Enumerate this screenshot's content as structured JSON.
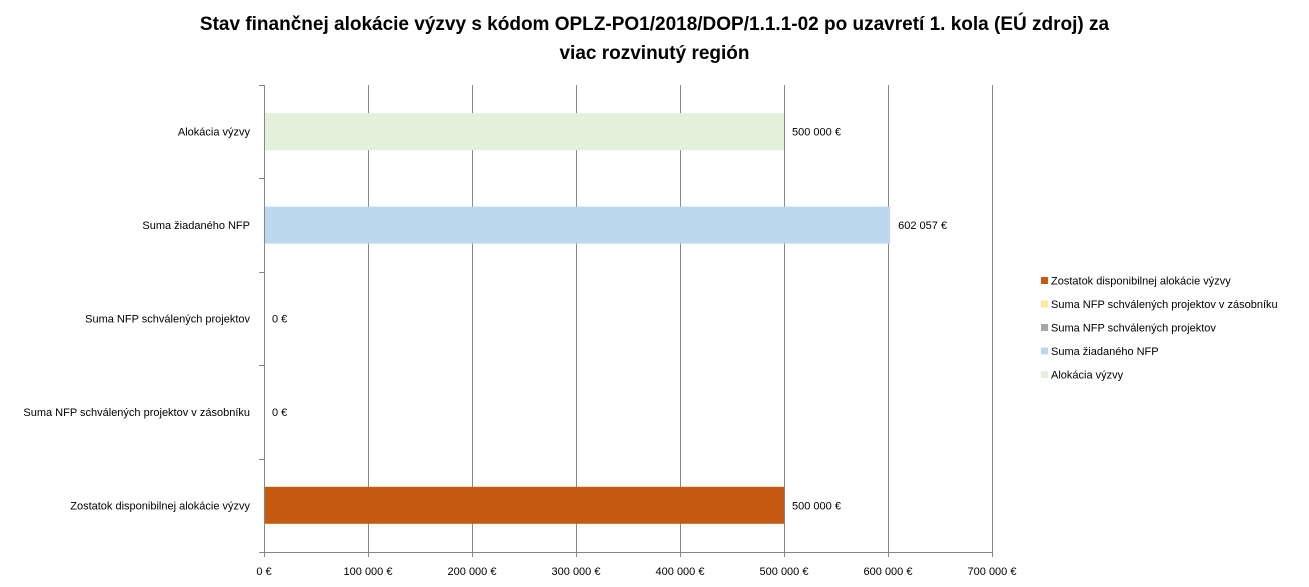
{
  "chart_data": {
    "type": "bar",
    "orientation": "horizontal",
    "title": "Stav finančnej alokácie výzvy s kódom OPLZ-PO1/2018/DOP/1.1.1-02 po uzavretí 1. kola (EÚ zdroj) za viac rozvinutý región",
    "title_lines": [
      "Stav finančnej alokácie výzvy s kódom OPLZ-PO1/2018/DOP/1.1.1-02 po uzavretí 1. kola (EÚ zdroj) za",
      "viac rozvinutý región"
    ],
    "xlabel": "",
    "ylabel": "",
    "xlim": [
      0,
      700000
    ],
    "x_ticks": [
      0,
      100000,
      200000,
      300000,
      400000,
      500000,
      600000,
      700000
    ],
    "x_tick_labels": [
      "0 €",
      "100 000 €",
      "200 000 €",
      "300 000 €",
      "400 000 €",
      "500 000 €",
      "600 000 €",
      "700 000 €"
    ],
    "grid": true,
    "legend_position": "right",
    "categories": [
      "Alokácia výzvy",
      "Suma žiadaného NFP",
      "Suma NFP schválených projektov",
      "Suma NFP schválených projektov v zásobníku",
      "Zostatok disponibilnej alokácie výzvy"
    ],
    "values": [
      500000,
      602057,
      0,
      0,
      500000
    ],
    "value_labels": [
      "500 000 €",
      "602 057 €",
      "0 €",
      "0 €",
      "500 000 €"
    ],
    "colors": [
      "#e3f1dc",
      "#bdd7ee",
      "#a6a6a6",
      "#fde9a2",
      "#c55a11"
    ],
    "legend": [
      {
        "label": "Zostatok disponibilnej alokácie výzvy",
        "color": "#c55a11"
      },
      {
        "label": "Suma NFP schválených projektov v zásobníku",
        "color": "#fde9a2"
      },
      {
        "label": "Suma NFP schválených projektov",
        "color": "#a6a6a6"
      },
      {
        "label": "Suma žiadaného NFP",
        "color": "#bdd7ee"
      },
      {
        "label": "Alokácia výzvy",
        "color": "#e3f1dc"
      }
    ]
  }
}
